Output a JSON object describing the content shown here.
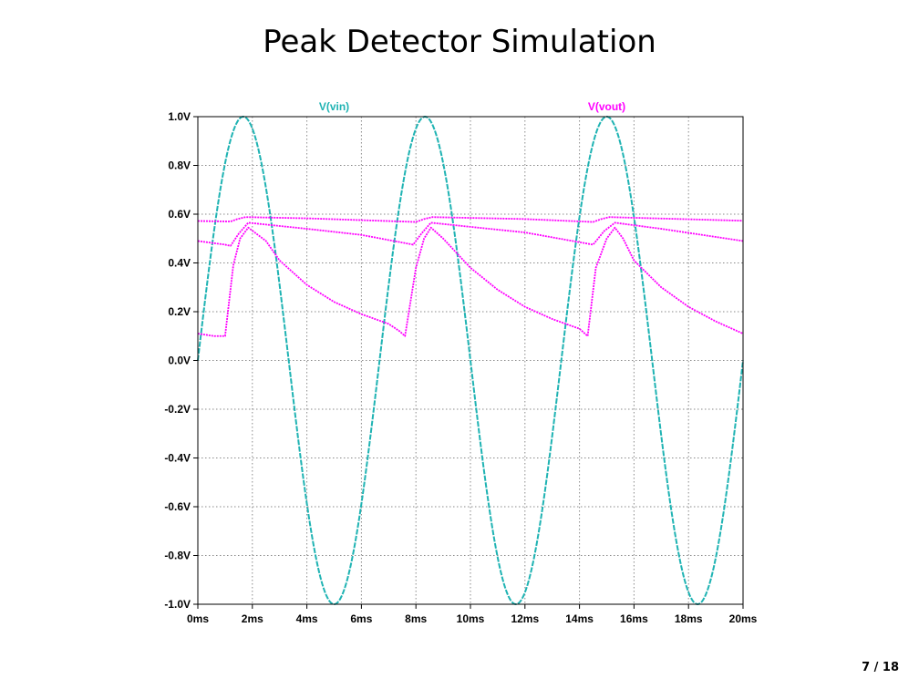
{
  "slide": {
    "title": "Peak Detector Simulation",
    "page_number": "7 / 18"
  },
  "chart_data": {
    "type": "line",
    "title": "",
    "xlabel": "",
    "ylabel": "",
    "x_unit": "ms",
    "y_unit": "V",
    "xlim": [
      0,
      20
    ],
    "ylim": [
      -1.0,
      1.0
    ],
    "x_ticks": [
      0,
      2,
      4,
      6,
      8,
      10,
      12,
      14,
      16,
      18,
      20
    ],
    "x_tick_labels": [
      "0ms",
      "2ms",
      "4ms",
      "6ms",
      "8ms",
      "10ms",
      "12ms",
      "14ms",
      "16ms",
      "18ms",
      "20ms"
    ],
    "y_ticks": [
      1.0,
      0.8,
      0.6,
      0.4,
      0.2,
      0.0,
      -0.2,
      -0.4,
      -0.6,
      -0.8,
      -1.0
    ],
    "y_tick_labels": [
      "1.0V",
      "0.8V",
      "0.6V",
      "0.4V",
      "0.2V",
      "0.0V",
      "-0.2V",
      "-0.4V",
      "-0.6V",
      "-0.8V",
      "-1.0V"
    ],
    "grid": true,
    "legend_position": "top",
    "colors": {
      "vin": "#1fb3b3",
      "vout": "#ff00ff",
      "grid": "#8a8a8a",
      "frame": "#000000"
    },
    "series": [
      {
        "name": "V(vin)",
        "color": "#1fb3b3",
        "style": "solid",
        "x": [
          0,
          0.5,
          1.0,
          1.667,
          2.2,
          2.8,
          3.333,
          4.0,
          4.5,
          5.0,
          5.5,
          6.0,
          6.667,
          7.2,
          8.3,
          8.8,
          9.4,
          10.0,
          10.5,
          11.0,
          11.7,
          12.2,
          13.333,
          14.0,
          15.0,
          15.6,
          16.2,
          16.667,
          17.5,
          18.333,
          19.0,
          20.0
        ],
        "values": [
          0.0,
          0.45,
          0.81,
          1.0,
          0.86,
          0.45,
          0.0,
          -0.59,
          -0.87,
          -1.0,
          -0.87,
          -0.59,
          0.0,
          0.45,
          1.0,
          0.81,
          0.31,
          -0.31,
          -0.72,
          -0.95,
          -0.99,
          -0.87,
          0.0,
          0.59,
          1.0,
          0.81,
          0.31,
          0.0,
          -0.59,
          -1.0,
          -0.81,
          0.0
        ]
      },
      {
        "name": "V(vout)",
        "color": "#ff00ff",
        "style": "dotted",
        "x": [
          0.0,
          0.6,
          1.0,
          1.3,
          1.55,
          1.85,
          2.5,
          3.0,
          4.0,
          5.0,
          6.0,
          7.0,
          7.4,
          7.6,
          8.0,
          8.3,
          8.55,
          9.0,
          10.0,
          11.0,
          12.0,
          13.0,
          14.0,
          14.3,
          14.6,
          15.0,
          15.3,
          15.6,
          16.0,
          17.0,
          18.0,
          19.0,
          20.0
        ],
        "values": [
          0.11,
          0.1,
          0.1,
          0.39,
          0.5,
          0.545,
          0.49,
          0.41,
          0.31,
          0.24,
          0.19,
          0.15,
          0.12,
          0.1,
          0.38,
          0.5,
          0.545,
          0.5,
          0.38,
          0.29,
          0.22,
          0.17,
          0.13,
          0.1,
          0.38,
          0.5,
          0.545,
          0.5,
          0.41,
          0.3,
          0.22,
          0.16,
          0.11
        ]
      },
      {
        "name": "",
        "color": "#ff00ff",
        "style": "dotted",
        "x": [
          0.0,
          1.0,
          1.2,
          1.5,
          1.85,
          4.0,
          6.0,
          7.9,
          8.2,
          8.55,
          10.0,
          12.0,
          14.5,
          14.9,
          15.3,
          17.0,
          20.0
        ],
        "values": [
          0.49,
          0.475,
          0.47,
          0.52,
          0.565,
          0.54,
          0.515,
          0.475,
          0.52,
          0.565,
          0.548,
          0.525,
          0.475,
          0.53,
          0.565,
          0.54,
          0.49
        ]
      },
      {
        "name": "",
        "color": "#ff00ff",
        "style": "dotted",
        "x": [
          0.0,
          1.2,
          1.45,
          1.75,
          4.0,
          8.0,
          8.3,
          8.6,
          12.0,
          14.5,
          14.8,
          15.1,
          20.0
        ],
        "values": [
          0.572,
          0.57,
          0.58,
          0.588,
          0.583,
          0.568,
          0.58,
          0.588,
          0.58,
          0.568,
          0.58,
          0.588,
          0.573
        ]
      }
    ]
  }
}
